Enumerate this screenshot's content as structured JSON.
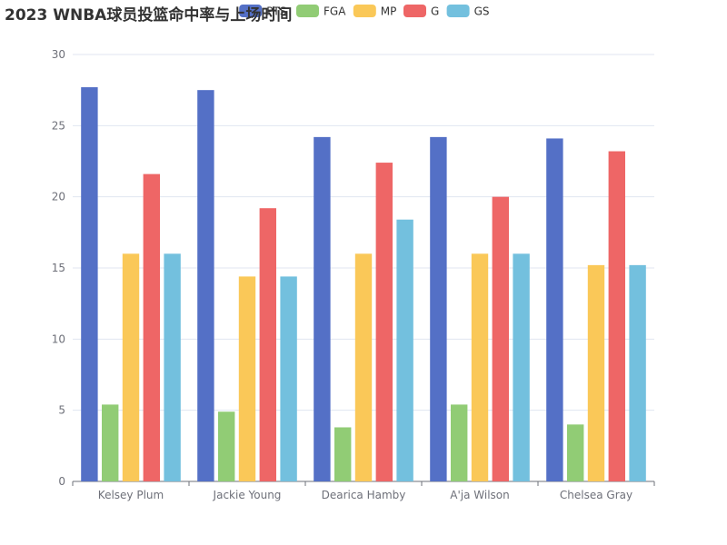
{
  "chart_data": {
    "type": "bar",
    "title": "2023 WNBA球员投篮命中率与上场时间",
    "categories": [
      "Kelsey Plum",
      "Jackie Young",
      "Dearica Hamby",
      "A'ja Wilson",
      "Chelsea Gray"
    ],
    "series": [
      {
        "name": "PTS",
        "color": "#5470c6",
        "values": [
          27.7,
          27.5,
          24.2,
          24.2,
          24.1
        ]
      },
      {
        "name": "FGA",
        "color": "#91cc75",
        "values": [
          5.4,
          4.9,
          3.8,
          5.4,
          4.0
        ]
      },
      {
        "name": "MP",
        "color": "#fac858",
        "values": [
          16.0,
          14.4,
          16.0,
          16.0,
          15.2
        ]
      },
      {
        "name": "G",
        "color": "#ee6666",
        "values": [
          21.6,
          19.2,
          22.4,
          20.0,
          23.2
        ]
      },
      {
        "name": "GS",
        "color": "#73c0de",
        "values": [
          16.0,
          14.4,
          18.4,
          16.0,
          15.2
        ]
      }
    ],
    "ylim": [
      0,
      30
    ],
    "yticks": [
      0,
      5,
      10,
      15,
      20,
      25,
      30
    ],
    "xlabel": "",
    "ylabel": "",
    "grid": true,
    "legend_position": "top"
  }
}
